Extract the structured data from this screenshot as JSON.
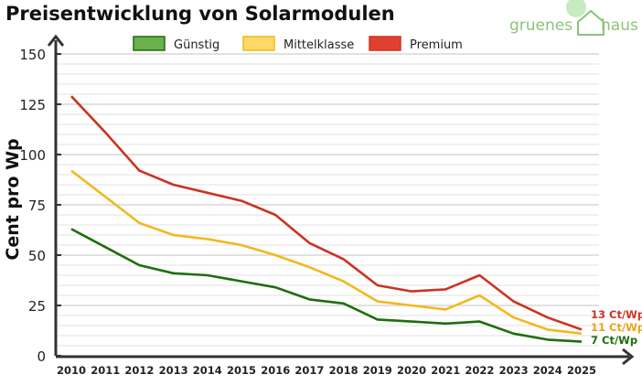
{
  "chart_data": {
    "type": "line",
    "title": "Preisentwicklung von Solarmodulen",
    "ylabel": "Cent pro Wp",
    "xlabel": "",
    "ylim": [
      0,
      150
    ],
    "yticks": [
      0,
      25,
      50,
      75,
      100,
      125,
      150
    ],
    "grid": true,
    "legend_position": "top",
    "categories": [
      "2010",
      "2011",
      "2012",
      "2013",
      "2014",
      "2015",
      "2016",
      "2017",
      "2018",
      "2019",
      "2020",
      "2021",
      "2022",
      "2023",
      "2024",
      "2025"
    ],
    "series": [
      {
        "name": "Günstig",
        "color": "#1e6e0c",
        "fill": "#6ab04c",
        "values": [
          63,
          54,
          45,
          41,
          40,
          37,
          34,
          28,
          26,
          18,
          17,
          16,
          17,
          11,
          8,
          7
        ],
        "end_label": "7 Ct/Wp"
      },
      {
        "name": "Mittelklasse",
        "color": "#f2b81c",
        "fill": "#ffd966",
        "values": [
          92,
          79,
          66,
          60,
          58,
          55,
          50,
          44,
          37,
          27,
          25,
          23,
          30,
          19,
          13,
          11
        ],
        "end_label": "11 Ct/Wp",
        "end_label_color": "#e8a317"
      },
      {
        "name": "Premium",
        "color": "#cc3322",
        "fill": "#e04030",
        "values": [
          129,
          111,
          92,
          85,
          81,
          77,
          70,
          56,
          48,
          35,
          32,
          33,
          40,
          27,
          19,
          13
        ],
        "end_label": "13 Ct/Wp"
      }
    ]
  },
  "logo": {
    "text_left": "gruenes",
    "text_right": "haus",
    "color": "#8bc47a"
  }
}
